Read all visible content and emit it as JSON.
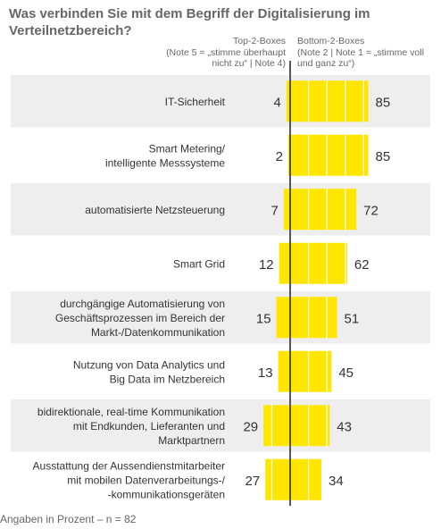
{
  "title": "Was verbinden Sie mit dem Begriff der Digitalisierung im Verteilnetzbereich?",
  "legend": {
    "left_title": "Top-2-Boxes",
    "left_sub": "(Note 5 = „stimme überhaupt nicht zu“ | Note 4)",
    "right_title": "Bottom-2-Boxes",
    "right_sub": "(Note 2 | Note 1 = „stimme voll und ganz zu“)"
  },
  "footnote": "Angaben in Prozent – n = 82",
  "colors": {
    "bar": "#ffe600",
    "bar_divider": "#ffffff",
    "band": "#eeeeee",
    "axis": "#555555",
    "text": "#333333"
  },
  "chart_data": {
    "type": "bar",
    "orientation": "horizontal-diverging",
    "categories": [
      [
        "IT-Sicherheit"
      ],
      [
        "Smart Metering/",
        "intelligente Messsysteme"
      ],
      [
        "automatisierte Netzsteuerung"
      ],
      [
        "Smart Grid"
      ],
      [
        "durchgängige Automatisierung von",
        "Geschäftsprozessen im Bereich der",
        "Markt-/Datenkommunikation"
      ],
      [
        "Nutzung von Data Analytics und",
        "Big Data im Netzbereich"
      ],
      [
        "bidirektionale, real-time Kommunikation",
        "mit Endkunden, Lieferanten und",
        "Marktpartnern"
      ],
      [
        "Ausstattung der Aussendienstmitarbeiter",
        "mit mobilen Datenverarbeitungs-/",
        "-kommunikationsgeräten"
      ]
    ],
    "series": [
      {
        "name": "Top-2-Boxes",
        "values": [
          4,
          2,
          7,
          12,
          15,
          13,
          29,
          27
        ]
      },
      {
        "name": "Bottom-2-Boxes",
        "values": [
          85,
          85,
          72,
          62,
          51,
          45,
          43,
          34
        ]
      }
    ]
  }
}
